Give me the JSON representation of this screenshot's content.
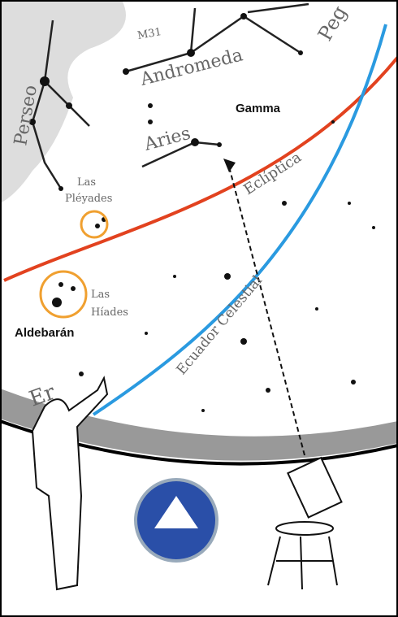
{
  "labels": {
    "m31": "M31",
    "andromeda": "Andromeda",
    "pegaso": "Peg",
    "perseo": "Perseo",
    "gamma": "Gamma",
    "aries": "Aries",
    "ecliptica": "Eclíptica",
    "pleyades": [
      "Las",
      "Pléyades"
    ],
    "hiades": [
      "Las",
      "Híades"
    ],
    "aldebaran": "Aldebarán",
    "ecuador": "Ecuador Celestial",
    "eridano": "Er"
  }
}
